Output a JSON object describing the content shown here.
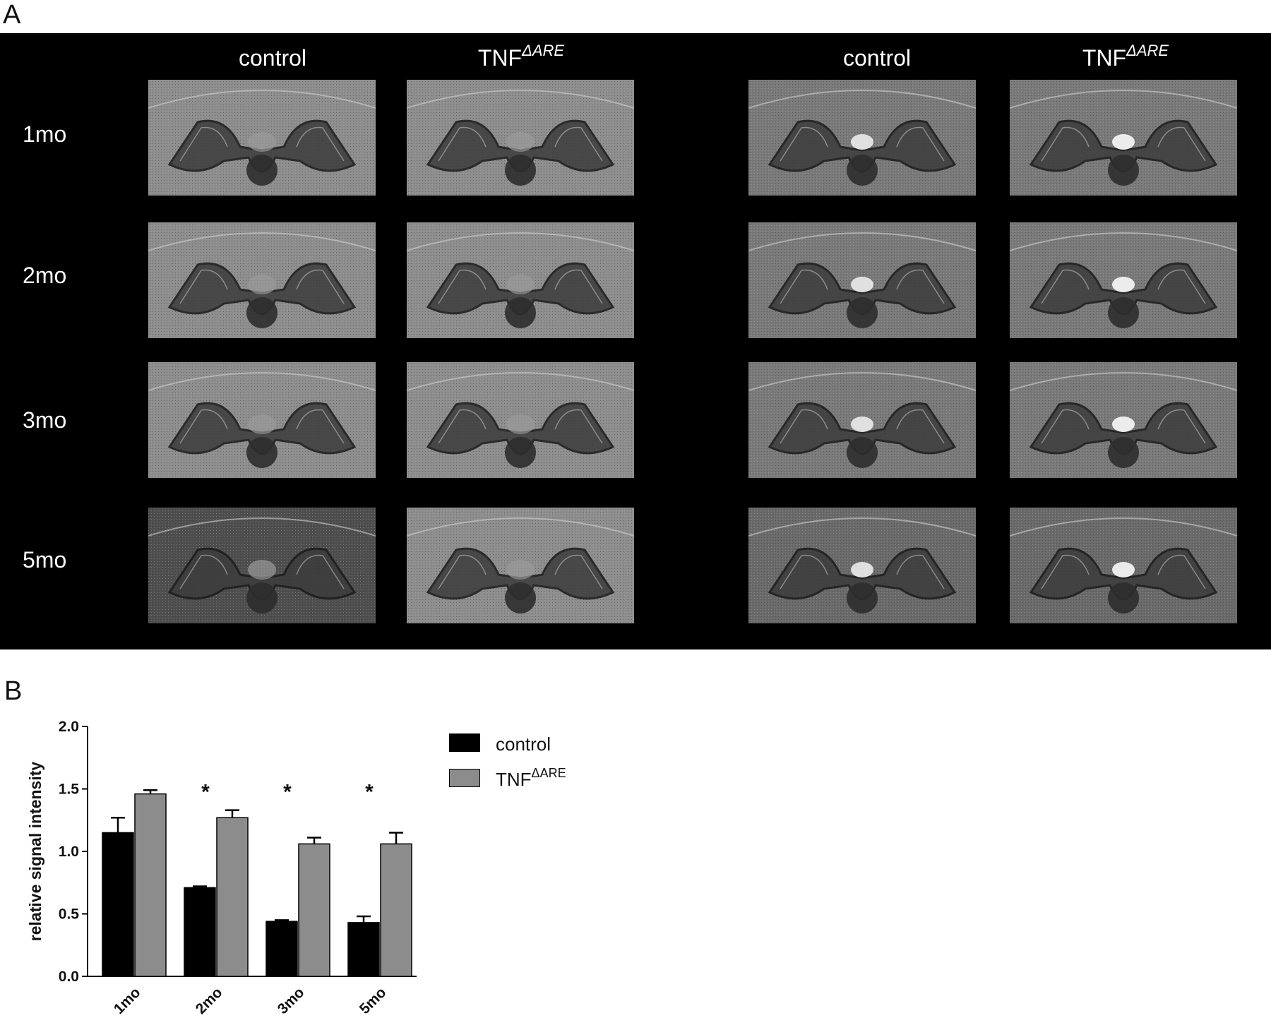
{
  "panel_a": {
    "letter": "A",
    "columns": [
      {
        "label": "control",
        "sup": ""
      },
      {
        "label": "TNF",
        "sup": "ΔARE"
      },
      {
        "label": "control",
        "sup": ""
      },
      {
        "label": "TNF",
        "sup": "ΔARE"
      }
    ],
    "rows": [
      "1mo",
      "2mo",
      "3mo",
      "5mo"
    ]
  },
  "panel_b": {
    "letter": "B",
    "legend": [
      {
        "label": "control",
        "sup": "",
        "color": "#000000"
      },
      {
        "label": "TNF",
        "sup": "ΔARE",
        "color": "#8c8c8c"
      }
    ]
  },
  "chart_data": {
    "type": "bar",
    "categories": [
      "1mo",
      "2mo",
      "3mo",
      "5mo"
    ],
    "series": [
      {
        "name": "control",
        "color": "#000000",
        "values": [
          1.15,
          0.71,
          0.44,
          0.43
        ],
        "errors": [
          0.12,
          0.01,
          0.01,
          0.05
        ]
      },
      {
        "name": "TNFΔARE",
        "color": "#8c8c8c",
        "values": [
          1.46,
          1.27,
          1.06,
          1.06
        ],
        "errors": [
          0.03,
          0.06,
          0.05,
          0.09
        ]
      }
    ],
    "significance": [
      "",
      "*",
      "*",
      "*"
    ],
    "ylabel": "relative signal intensity",
    "xlabel": "",
    "ylim": [
      0,
      2.0
    ],
    "yticks": [
      "0.0",
      "0.5",
      "1.0",
      "1.5",
      "2.0"
    ],
    "grid": false,
    "legend_position": "right"
  }
}
